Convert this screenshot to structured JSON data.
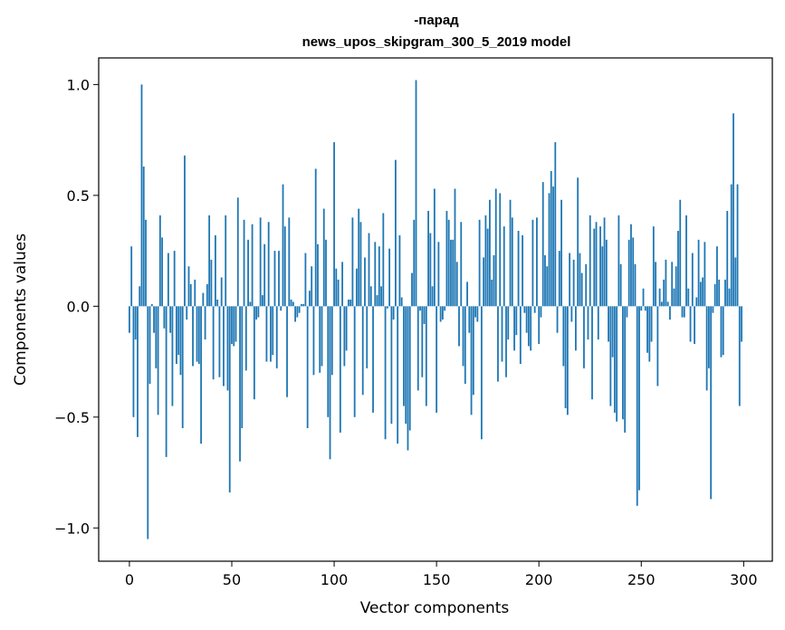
{
  "chart_data": {
    "type": "bar",
    "title_line1": "-парад",
    "title_line2": "news_upos_skipgram_300_5_2019 model",
    "xlabel": "Vector components",
    "ylabel": "Components values",
    "xlim": [
      -15,
      314
    ],
    "ylim": [
      -1.15,
      1.12
    ],
    "xticks": [
      0,
      50,
      100,
      150,
      200,
      250,
      300
    ],
    "xtick_labels": [
      "0",
      "50",
      "100",
      "150",
      "200",
      "250",
      "300"
    ],
    "yticks": [
      -1.0,
      -0.5,
      0.0,
      0.5,
      1.0
    ],
    "ytick_labels": [
      "−1.0",
      "−0.5",
      "0.0",
      "0.5",
      "1.0"
    ],
    "bar_color": "#1f77b4",
    "values": [
      -0.12,
      0.27,
      -0.5,
      -0.15,
      -0.59,
      0.09,
      1.0,
      0.63,
      0.39,
      -1.05,
      -0.35,
      0.01,
      -0.12,
      -0.28,
      -0.49,
      0.41,
      0.31,
      -0.1,
      -0.68,
      0.24,
      -0.12,
      -0.45,
      0.25,
      -0.26,
      -0.22,
      -0.31,
      -0.55,
      0.68,
      -0.06,
      0.18,
      0.1,
      -0.27,
      0.12,
      -0.25,
      -0.26,
      -0.62,
      0.06,
      -0.15,
      0.1,
      0.41,
      0.21,
      -0.33,
      0.32,
      0.03,
      -0.32,
      0.13,
      -0.36,
      0.41,
      -0.38,
      -0.84,
      -0.17,
      -0.18,
      -0.16,
      0.49,
      -0.7,
      -0.55,
      0.39,
      -0.29,
      0.3,
      0.02,
      0.37,
      -0.42,
      -0.06,
      -0.05,
      0.4,
      0.05,
      0.28,
      -0.25,
      0.38,
      -0.25,
      -0.22,
      0.25,
      -0.28,
      0.25,
      -0.02,
      0.55,
      0.36,
      -0.41,
      0.4,
      0.03,
      0.02,
      -0.07,
      -0.05,
      -0.03,
      0.01,
      0.01,
      0.24,
      -0.55,
      0.07,
      0.18,
      -0.31,
      0.62,
      0.28,
      -0.3,
      -0.27,
      0.44,
      0.3,
      -0.5,
      -0.69,
      -0.31,
      0.74,
      0.17,
      0.12,
      -0.57,
      0.2,
      -0.27,
      -0.2,
      0.03,
      0.03,
      0.4,
      -0.5,
      0.17,
      0.44,
      0.38,
      -0.4,
      0.22,
      -0.28,
      0.33,
      0.09,
      -0.48,
      0.29,
      0.05,
      0.27,
      0.09,
      0.42,
      -0.6,
      -0.01,
      0.26,
      -0.53,
      -0.06,
      0.66,
      -0.62,
      0.32,
      0.04,
      -0.45,
      -0.53,
      -0.65,
      -0.56,
      0.15,
      0.39,
      1.02,
      -0.38,
      -0.02,
      -0.32,
      -0.08,
      -0.45,
      0.43,
      0.33,
      0.09,
      0.53,
      -0.48,
      0.29,
      -0.07,
      -0.06,
      -0.02,
      0.43,
      0.39,
      0.3,
      0.3,
      0.53,
      0.2,
      -0.18,
      0.38,
      -0.27,
      -0.35,
      0.11,
      -0.12,
      -0.49,
      -0.4,
      -0.05,
      -0.07,
      0.39,
      -0.6,
      0.22,
      0.41,
      0.35,
      0.48,
      0.12,
      0.23,
      0.53,
      -0.34,
      0.51,
      -0.25,
      0.36,
      -0.32,
      -0.15,
      0.48,
      0.4,
      -0.2,
      -0.13,
      0.34,
      -0.26,
      0.32,
      -0.03,
      -0.12,
      -0.18,
      -0.2,
      0.39,
      -0.03,
      0.4,
      -0.17,
      -0.05,
      0.56,
      0.23,
      0.18,
      0.51,
      0.61,
      0.54,
      0.74,
      -0.12,
      0.25,
      0.48,
      -0.27,
      -0.46,
      -0.49,
      0.24,
      -0.07,
      0.21,
      -0.2,
      0.58,
      0.24,
      0.15,
      -0.28,
      0.19,
      -0.15,
      0.41,
      -0.42,
      0.35,
      0.38,
      -0.15,
      0.36,
      0.27,
      0.4,
      0.3,
      -0.16,
      -0.45,
      -0.23,
      -0.48,
      -0.52,
      0.41,
      0.19,
      -0.51,
      -0.57,
      -0.05,
      0.3,
      0.37,
      0.31,
      0.19,
      -0.9,
      -0.83,
      -0.02,
      0.08,
      -0.02,
      -0.21,
      -0.25,
      -0.16,
      0.36,
      0.2,
      -0.36,
      0.08,
      0.02,
      0.12,
      0.21,
      0.02,
      -0.06,
      0.2,
      0.08,
      0.18,
      0.34,
      0.48,
      -0.05,
      -0.05,
      0.41,
      0.08,
      -0.16,
      0.24,
      -0.17,
      0.04,
      0.3,
      0.11,
      0.13,
      0.29,
      -0.38,
      -0.28,
      -0.87,
      -0.03,
      0.1,
      0.27,
      0.12,
      -0.23,
      -0.22,
      0.12,
      0.43,
      0.08,
      0.55,
      0.87,
      0.22,
      0.55,
      -0.45,
      -0.16
    ]
  }
}
